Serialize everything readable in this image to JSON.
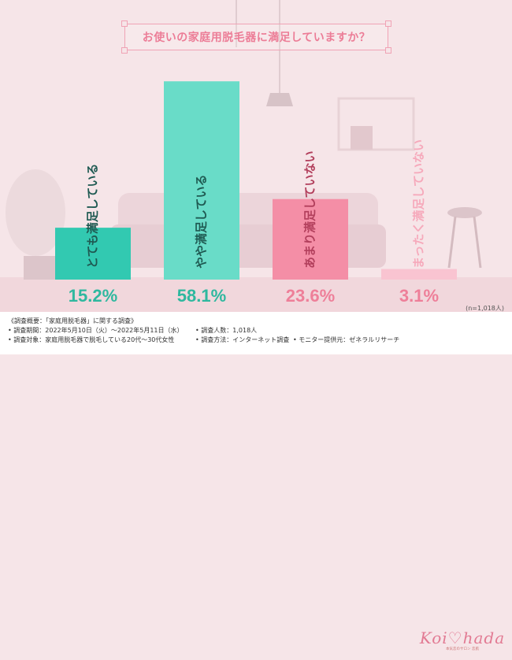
{
  "title": "お使いの家庭用脱毛器に満足していますか？",
  "chart_data": {
    "type": "bar",
    "categories": [
      "とても満足している",
      "やや満足している",
      "あまり満足していない",
      "まったく満足していない"
    ],
    "values": [
      15.2,
      58.1,
      23.6,
      3.1
    ],
    "value_labels": [
      "15.2%",
      "58.1%",
      "23.6%",
      "3.1%"
    ],
    "colors": [
      "#32c9b1",
      "#69dcc8",
      "#f48ea6",
      "#f9c4d1"
    ],
    "label_colors": [
      "#2fb89f",
      "#2fb89f",
      "#ee7f99",
      "#ee7f99"
    ],
    "ylim": [
      0,
      60
    ]
  },
  "n_note": "(n=1,018人)",
  "survey": {
    "overview": "《調査概要：「家庭用脱毛器」に関する調査》",
    "period": "• 調査期間：2022年5月10日（火）～2022年5月11日（水）",
    "target": "• 調査対象：家庭用脱毛器で脱毛している20代～30代女性",
    "count": "• 調査人数：1,018人",
    "method": "• 調査方法：インターネット調査",
    "provider": "• モニター提供元：ゼネラルリサーチ"
  },
  "logo": {
    "text": "Koi♡hada",
    "sub": "本気恋のサロン 恋肌"
  }
}
